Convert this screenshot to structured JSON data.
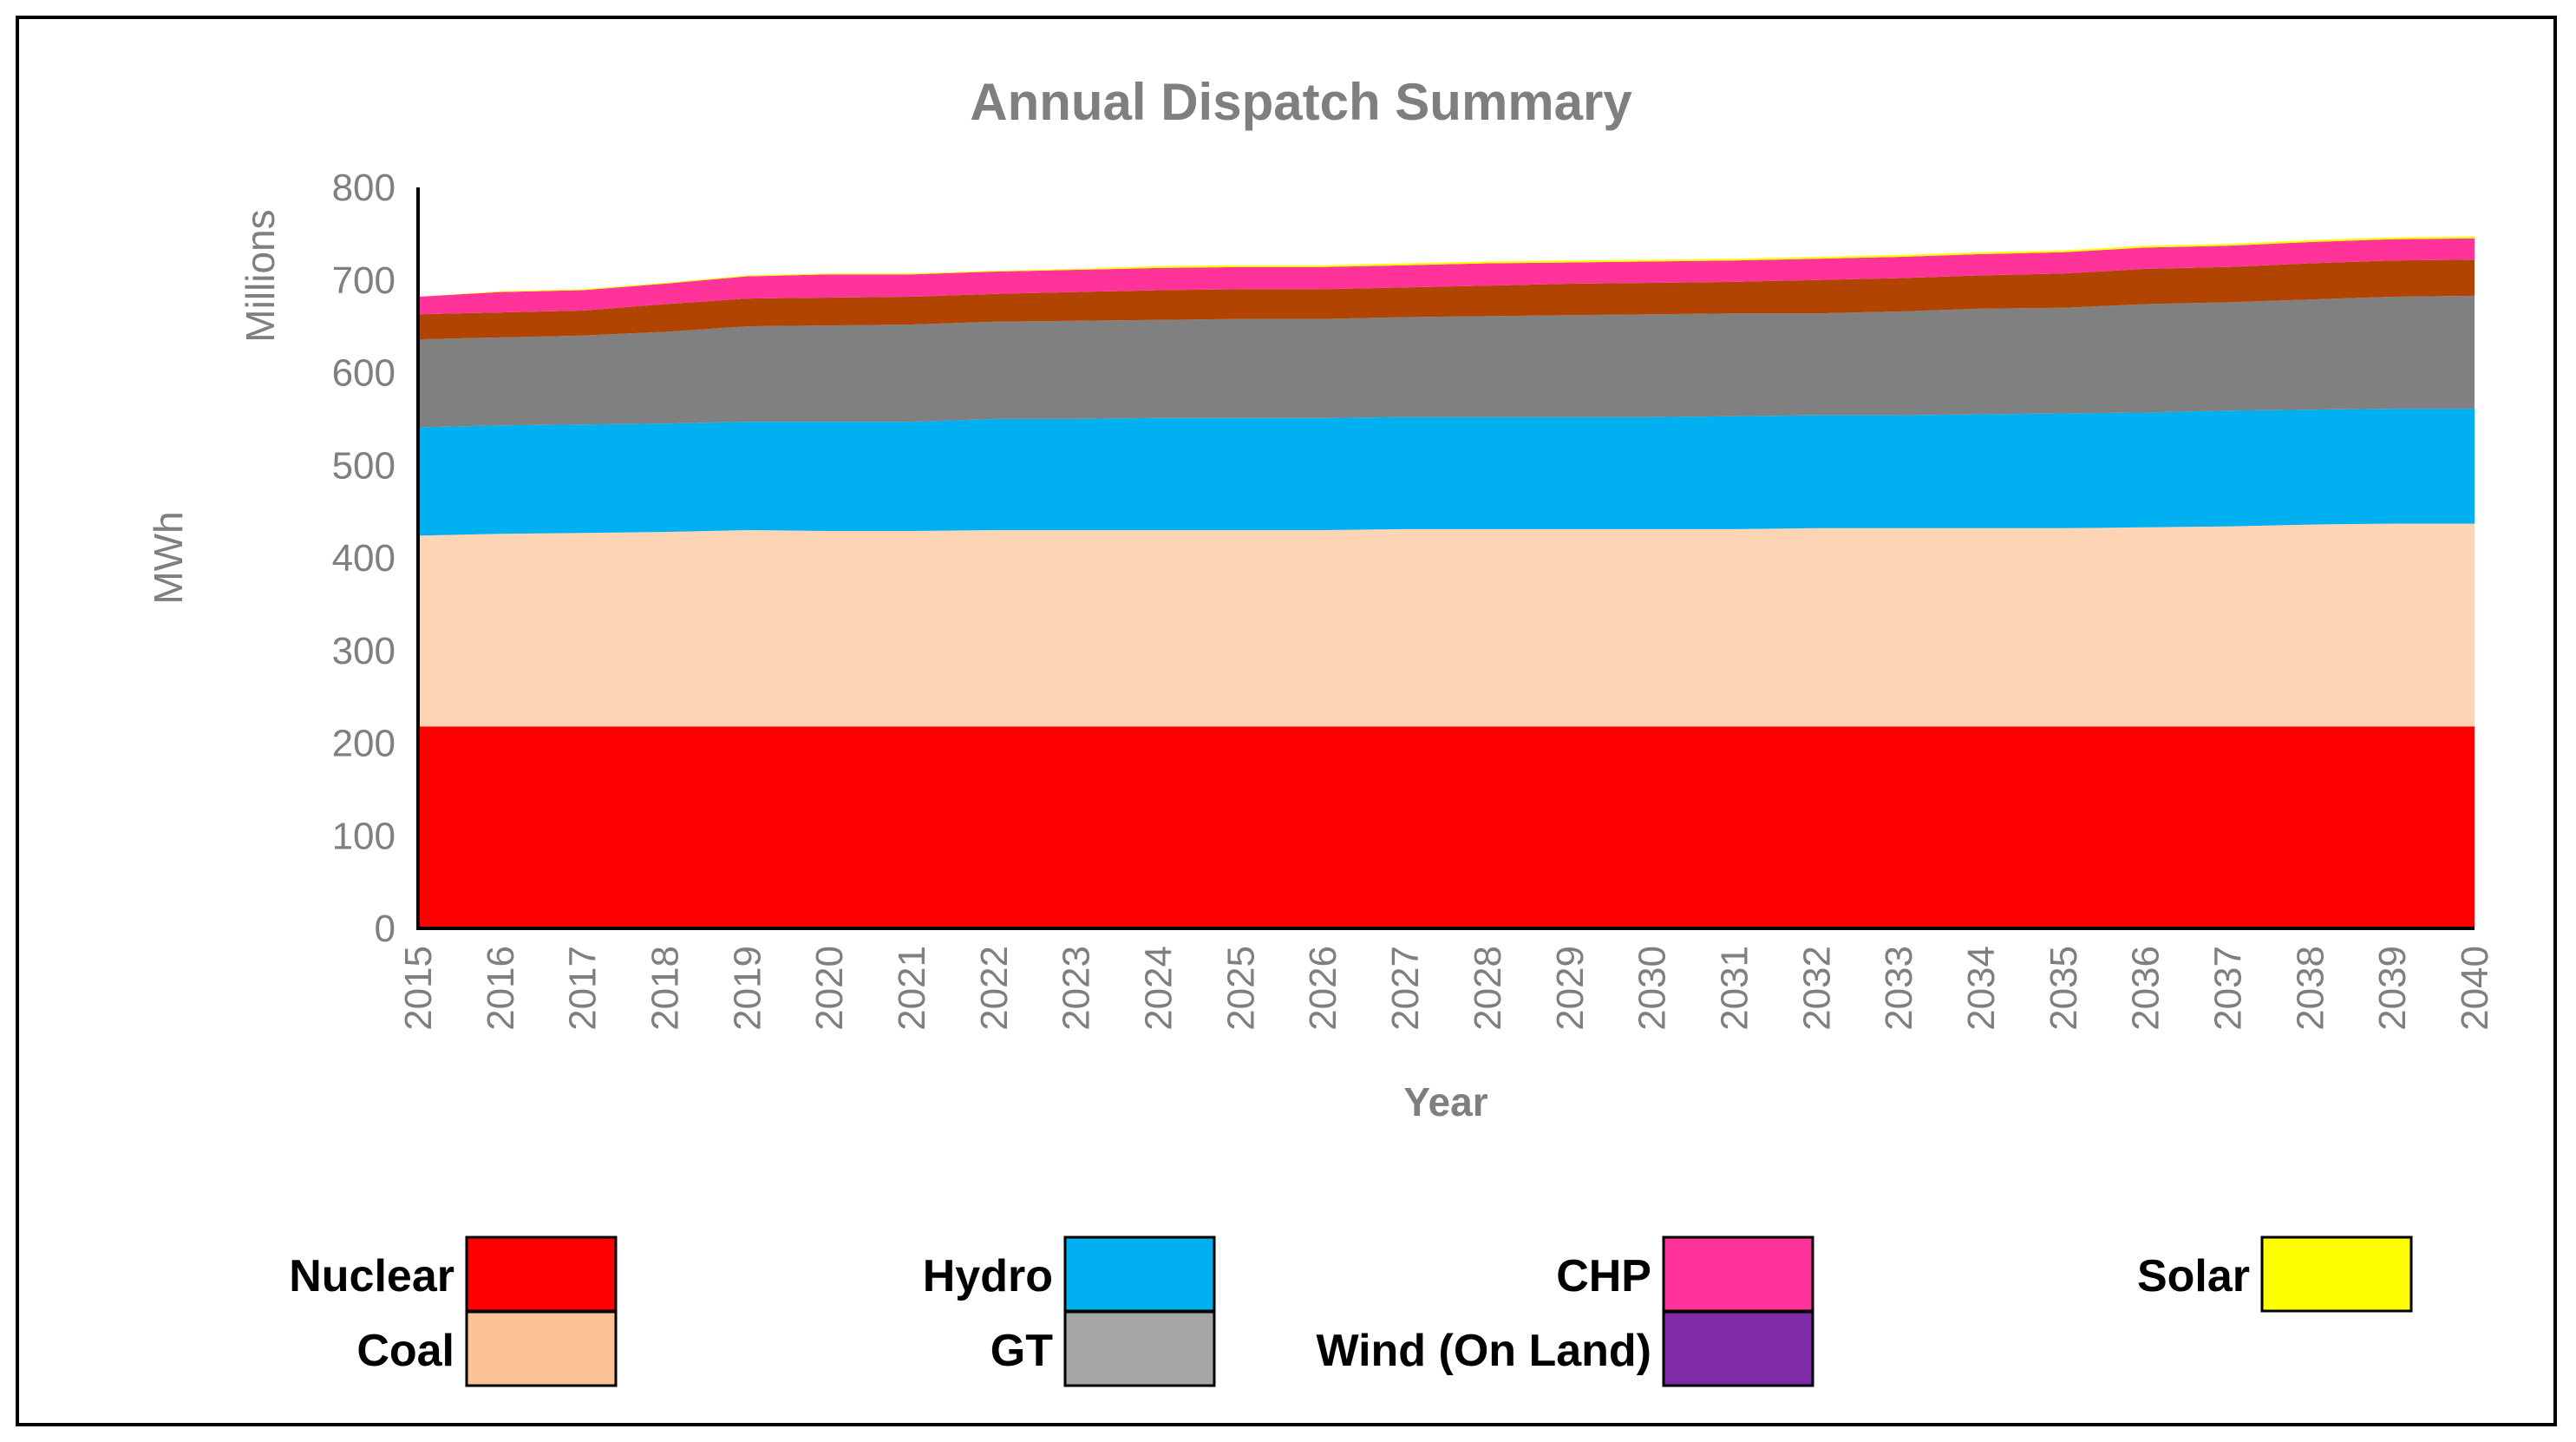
{
  "chart_data": {
    "type": "area",
    "stacked": true,
    "title": "Annual Dispatch Summary",
    "xlabel": "Year",
    "ylabel": "MWh",
    "yunit_label": "Millions",
    "ylim": [
      0,
      800
    ],
    "yticks": [
      "0",
      "100",
      "200",
      "300",
      "400",
      "500",
      "600",
      "700",
      "800"
    ],
    "categories": [
      "2015",
      "2016",
      "2017",
      "2018",
      "2019",
      "2020",
      "2021",
      "2022",
      "2023",
      "2024",
      "2025",
      "2026",
      "2027",
      "2028",
      "2029",
      "2030",
      "2031",
      "2032",
      "2033",
      "2034",
      "2035",
      "2036",
      "2037",
      "2038",
      "2039",
      "2040"
    ],
    "legend_position": "bottom",
    "series": [
      {
        "name": "Nuclear",
        "color": "#ff0000",
        "legend_color": "#ff0000",
        "values": [
          218,
          218,
          218,
          218,
          218,
          218,
          218,
          218,
          218,
          218,
          218,
          218,
          218,
          218,
          218,
          218,
          218,
          218,
          218,
          218,
          218,
          218,
          218,
          218,
          218,
          218
        ]
      },
      {
        "name": "Coal",
        "color": "#fdd5b4",
        "legend_color": "#fdc396",
        "values": [
          206,
          208,
          209,
          210,
          212,
          211,
          211,
          212,
          212,
          212,
          212,
          212,
          213,
          213,
          213,
          213,
          213,
          214,
          214,
          214,
          214,
          215,
          216,
          218,
          219,
          219
        ]
      },
      {
        "name": "Hydro",
        "color": "#00b0f0",
        "legend_color": "#00b0f0",
        "values": [
          117,
          117,
          117,
          117,
          117,
          118,
          118,
          120,
          120,
          121,
          121,
          121,
          121,
          121,
          121,
          121,
          122,
          122,
          122,
          123,
          124,
          124,
          125,
          124,
          124,
          124
        ]
      },
      {
        "name": "GT",
        "color": "#808080",
        "legend_color": "#a6a6a6",
        "values": [
          95,
          95,
          96,
          99,
          103,
          104,
          105,
          105,
          106,
          106,
          107,
          107,
          108,
          109,
          110,
          111,
          111,
          110,
          112,
          114,
          114,
          117,
          117,
          119,
          121,
          122
        ]
      },
      {
        "name": "Wind (On Land)",
        "color": "#b04400",
        "legend_color": "#7f2aa6",
        "values": [
          27,
          27,
          27,
          30,
          30,
          30,
          30,
          30,
          31,
          32,
          32,
          32,
          32,
          33,
          34,
          34,
          34,
          36,
          36,
          36,
          37,
          38,
          38,
          39,
          39,
          39
        ]
      },
      {
        "name": "CHP",
        "color": "#ff3399",
        "legend_color": "#ff3399",
        "values": [
          19,
          22,
          22,
          22,
          24,
          25,
          24,
          24,
          24,
          24,
          24,
          24,
          24,
          24,
          23,
          23,
          23,
          23,
          23,
          23,
          23,
          23,
          23,
          23,
          23,
          23
        ]
      },
      {
        "name": "Solar",
        "color": "#ffff00",
        "legend_color": "#ffff00",
        "values": [
          0,
          1,
          1,
          1,
          1,
          1,
          1,
          1,
          1,
          2,
          2,
          2,
          2,
          2,
          2,
          2,
          2,
          2,
          2,
          2,
          2,
          2,
          2,
          2,
          2,
          2
        ]
      }
    ],
    "legend_order": [
      [
        "Nuclear",
        "Hydro",
        "CHP",
        "Solar"
      ],
      [
        "Coal",
        "GT",
        "Wind (On Land)"
      ]
    ]
  }
}
